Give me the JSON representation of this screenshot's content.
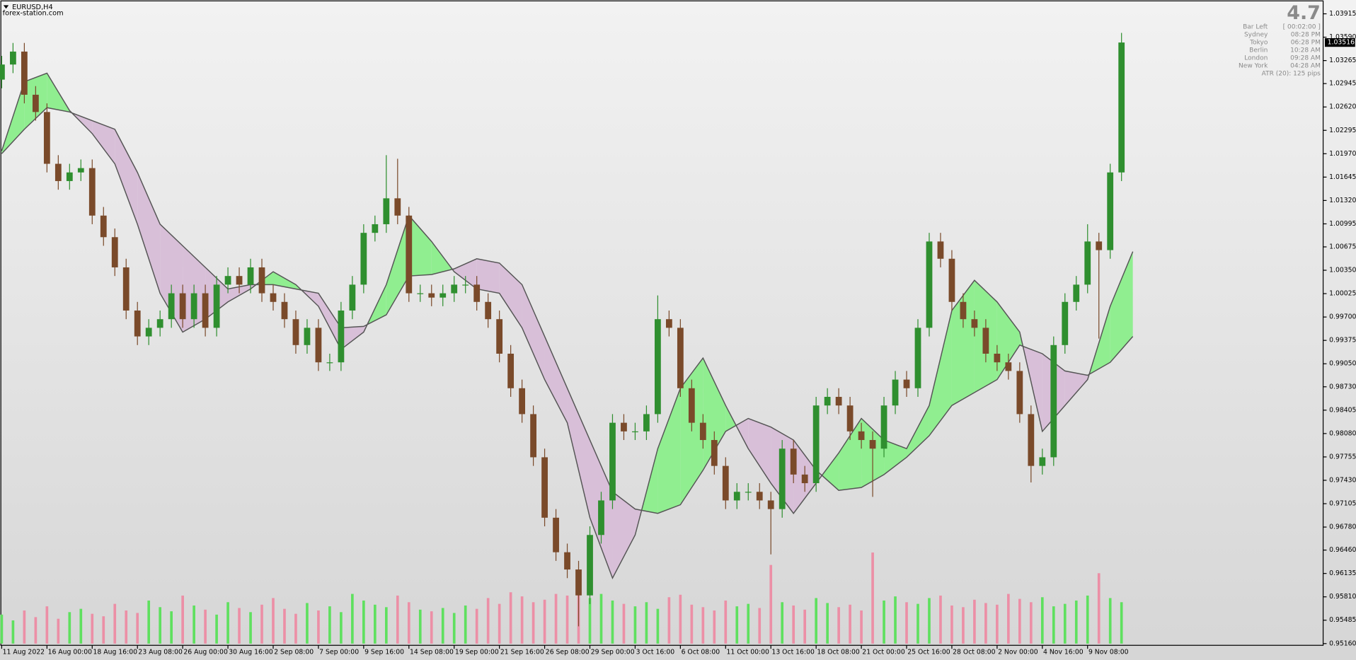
{
  "chart_data": {
    "type": "candlestick",
    "symbol": "EURUSD,H4",
    "source": "forex-station.com",
    "xlim": [
      -0.3,
      467.3
    ],
    "ylim": [
      0.95136,
      1.04083
    ],
    "yticks": [
      1.03915,
      {
        "value": 1.0359,
        "label": "1.03590"
      },
      1.03265,
      1.02945,
      {
        "value": 1.0262,
        "label": "1.02620"
      },
      1.02295,
      {
        "value": 1.0197,
        "label": "1.01970"
      },
      1.01645,
      {
        "value": 1.0132,
        "label": "1.01320"
      },
      1.00995,
      1.00675,
      {
        "value": 1.0035,
        "label": "1.00350"
      },
      1.00025,
      {
        "value": 0.997,
        "label": "0.99700"
      },
      0.99375,
      {
        "value": 0.9905,
        "label": "0.99050"
      },
      {
        "value": 0.9873,
        "label": "0.98730"
      },
      0.98405,
      {
        "value": 0.9808,
        "label": "0.98080"
      },
      0.97755,
      {
        "value": 0.9743,
        "label": "0.97430"
      },
      0.97105,
      {
        "value": 0.9678,
        "label": "0.96780"
      },
      {
        "value": 0.9646,
        "label": "0.96460"
      },
      0.96135,
      {
        "value": 0.9581,
        "label": "0.95810"
      },
      0.95485,
      {
        "value": 0.9516,
        "label": "0.95160"
      }
    ],
    "xticks": [
      {
        "value": 0,
        "label": "11 Aug 2022"
      },
      {
        "value": 16,
        "label": "16 Aug 00:00"
      },
      {
        "value": 32,
        "label": "18 Aug 16:00"
      },
      {
        "value": 48,
        "label": "23 Aug 08:00"
      },
      {
        "value": 64,
        "label": "26 Aug 00:00"
      },
      {
        "value": 80,
        "label": "30 Aug 16:00"
      },
      {
        "value": 96,
        "label": "2 Sep 08:00"
      },
      {
        "value": 112,
        "label": "7 Sep 00:00"
      },
      {
        "value": 128,
        "label": "9 Sep 16:00"
      },
      {
        "value": 144,
        "label": "14 Sep 08:00"
      },
      {
        "value": 160,
        "label": "19 Sep 00:00"
      },
      {
        "value": 176,
        "label": "21 Sep 16:00"
      },
      {
        "value": 192,
        "label": "26 Sep 08:00"
      },
      {
        "value": 208,
        "label": "29 Sep 00:00"
      },
      {
        "value": 224,
        "label": "3 Oct 16:00"
      },
      {
        "value": 240,
        "label": "6 Oct 08:00"
      },
      {
        "value": 256,
        "label": "11 Oct 00:00"
      },
      {
        "value": 272,
        "label": "13 Oct 16:00"
      },
      {
        "value": 288,
        "label": "18 Oct 08:00"
      },
      {
        "value": 304,
        "label": "21 Oct 00:00"
      },
      {
        "value": 320,
        "label": "25 Oct 16:00"
      },
      {
        "value": 336,
        "label": "28 Oct 08:00"
      },
      {
        "value": 352,
        "label": "2 Nov 00:00"
      },
      {
        "value": 368,
        "label": "4 Nov 16:00"
      },
      {
        "value": 384,
        "label": "9 Nov 08:00"
      }
    ],
    "x": [
      0,
      4,
      8,
      12,
      16,
      20,
      24,
      28,
      32,
      36,
      40,
      44,
      48,
      52,
      56,
      60,
      64,
      68,
      72,
      76,
      80,
      84,
      88,
      92,
      96,
      100,
      104,
      108,
      112,
      116,
      120,
      124,
      128,
      132,
      136,
      140,
      144,
      148,
      152,
      156,
      160,
      164,
      168,
      172,
      176,
      180,
      184,
      188,
      192,
      196,
      200,
      204,
      208,
      212,
      216,
      220,
      224,
      228,
      232,
      236,
      240,
      244,
      248,
      252,
      256,
      260,
      264,
      268,
      272,
      276,
      280,
      284,
      288,
      292,
      296,
      300,
      304,
      308,
      312,
      316,
      320,
      324,
      328,
      332,
      336,
      340,
      344,
      348,
      352,
      356,
      360,
      364,
      368,
      372,
      376,
      380,
      384,
      388,
      392,
      396
    ],
    "open": [
      1.03,
      1.0321,
      1.0339,
      1.0279,
      1.0255,
      1.0183,
      1.0159,
      1.0171,
      1.0177,
      1.0111,
      1.0081,
      1.0039,
      0.9979,
      0.9943,
      0.9955,
      0.9967,
      1.0003,
      0.9967,
      1.0003,
      0.9955,
      1.0015,
      1.0027,
      1.0015,
      1.0039,
      1.0003,
      0.9991,
      0.9967,
      0.9931,
      0.9955,
      0.9907,
      0.9907,
      0.9979,
      1.0015,
      1.0087,
      1.0099,
      1.0135,
      1.0111,
      1.0003,
      1.0003,
      0.9997,
      1.0003,
      1.0015,
      1.0015,
      0.9991,
      0.9967,
      0.9919,
      0.9871,
      0.9835,
      0.9775,
      0.9691,
      0.9643,
      0.9619,
      0.9583,
      0.9667,
      0.9715,
      0.9823,
      0.9811,
      0.9811,
      0.9835,
      0.9967,
      0.9955,
      0.9871,
      0.9823,
      0.9799,
      0.9763,
      0.9715,
      0.9727,
      0.9727,
      0.9715,
      0.9703,
      0.9787,
      0.9751,
      0.9739,
      0.9847,
      0.9859,
      0.9847,
      0.9811,
      0.9799,
      0.9787,
      0.9847,
      0.9883,
      0.9871,
      0.9955,
      1.0075,
      1.0051,
      0.9991,
      0.9967,
      0.9955,
      0.9919,
      0.9907,
      0.9895,
      0.9835,
      0.9763,
      0.9775,
      0.9931,
      0.9991,
      1.0015,
      1.0075,
      1.0063,
      1.0171
    ],
    "high": [
      1.0333,
      1.0351,
      1.0351,
      1.0291,
      1.0267,
      1.0195,
      1.0183,
      1.0189,
      1.0189,
      1.0123,
      1.0093,
      1.0051,
      0.9991,
      0.9967,
      0.9979,
      1.0015,
      1.0015,
      1.0015,
      1.0015,
      1.0027,
      1.0039,
      1.0039,
      1.0051,
      1.0051,
      1.0015,
      1.0003,
      0.9979,
      0.9967,
      0.9967,
      0.9919,
      0.9991,
      1.0027,
      1.0099,
      1.0111,
      1.0195,
      1.019,
      1.0123,
      1.0015,
      1.0015,
      1.0015,
      1.0027,
      1.0027,
      1.0027,
      1.0003,
      0.9979,
      0.9931,
      0.9883,
      0.9847,
      0.9787,
      0.9703,
      0.9655,
      0.9631,
      0.9679,
      0.9727,
      0.9835,
      0.9835,
      0.9823,
      0.9847,
      1.0,
      0.9979,
      0.9967,
      0.9883,
      0.9835,
      0.9811,
      0.9775,
      0.9739,
      0.9739,
      0.9739,
      0.9727,
      0.9799,
      0.9799,
      0.9763,
      0.9859,
      0.9871,
      0.9871,
      0.9859,
      0.9823,
      0.9811,
      0.9859,
      0.9895,
      0.9895,
      0.9967,
      1.0087,
      1.0087,
      1.0063,
      1.0003,
      0.9979,
      0.9967,
      0.9931,
      0.9919,
      0.9907,
      0.9847,
      0.9787,
      0.9943,
      1.0003,
      1.0027,
      1.0099,
      1.0087,
      1.0183,
      1.0365
    ],
    "low": [
      1.0288,
      1.0309,
      1.0267,
      1.0243,
      1.0171,
      1.0147,
      1.0147,
      1.0159,
      1.0099,
      1.0069,
      1.0027,
      0.9967,
      0.9931,
      0.9931,
      0.9943,
      0.9955,
      0.9955,
      0.9955,
      0.9943,
      0.9943,
      1.0003,
      1.0003,
      1.0003,
      0.9991,
      0.9979,
      0.9955,
      0.9919,
      0.9919,
      0.9895,
      0.9895,
      0.9895,
      0.9967,
      1.0003,
      1.0075,
      1.0087,
      1.0099,
      0.9991,
      0.9991,
      0.9985,
      0.9985,
      0.9991,
      1.0003,
      0.9979,
      0.9955,
      0.9907,
      0.9859,
      0.9823,
      0.9763,
      0.9679,
      0.9631,
      0.9607,
      0.954,
      0.9571,
      0.9655,
      0.9703,
      0.9799,
      0.9799,
      0.9799,
      0.9823,
      0.9943,
      0.9859,
      0.9811,
      0.9787,
      0.9751,
      0.9703,
      0.9703,
      0.9715,
      0.9703,
      0.964,
      0.9691,
      0.9739,
      0.9727,
      0.9727,
      0.9835,
      0.9835,
      0.9799,
      0.9787,
      0.972,
      0.9775,
      0.9835,
      0.9859,
      0.9859,
      0.9943,
      1.0039,
      0.9979,
      0.9955,
      0.9943,
      0.9907,
      0.9895,
      0.9883,
      0.9823,
      0.974,
      0.9751,
      0.9763,
      0.9919,
      0.9979,
      1.0003,
      0.994,
      1.0051,
      1.0159
    ],
    "close": [
      1.0321,
      1.0339,
      1.0279,
      1.0255,
      1.0183,
      1.0159,
      1.0171,
      1.0177,
      1.0111,
      1.0081,
      1.0039,
      0.9979,
      0.9943,
      0.9955,
      0.9967,
      1.0003,
      0.9967,
      1.0003,
      0.9955,
      1.0015,
      1.0027,
      1.0015,
      1.0039,
      1.0003,
      0.9991,
      0.9967,
      0.9931,
      0.9955,
      0.9907,
      0.9907,
      0.9979,
      1.0015,
      1.0087,
      1.0099,
      1.0135,
      1.0111,
      1.0003,
      1.0003,
      0.9997,
      1.0003,
      1.0015,
      1.0015,
      0.9991,
      0.9967,
      0.9919,
      0.9871,
      0.9835,
      0.9775,
      0.9691,
      0.9643,
      0.9619,
      0.9583,
      0.9667,
      0.9715,
      0.9823,
      0.9811,
      0.9811,
      0.9835,
      0.9967,
      0.9955,
      0.9871,
      0.9823,
      0.9799,
      0.9763,
      0.9715,
      0.9727,
      0.9727,
      0.9715,
      0.9703,
      0.9787,
      0.9751,
      0.9739,
      0.9847,
      0.9859,
      0.9847,
      0.9811,
      0.9799,
      0.9787,
      0.9847,
      0.9883,
      0.9871,
      0.9955,
      1.0075,
      1.0051,
      0.9991,
      0.9967,
      0.9955,
      0.9919,
      0.9907,
      0.9895,
      0.9835,
      0.9763,
      0.9775,
      0.9931,
      0.9991,
      1.0015,
      1.0075,
      1.0063,
      1.0171,
      1.03516
    ],
    "volume": [
      35,
      28,
      40,
      32,
      45,
      30,
      38,
      42,
      36,
      33,
      48,
      40,
      37,
      52,
      44,
      39,
      58,
      46,
      41,
      35,
      50,
      43,
      38,
      47,
      55,
      42,
      36,
      49,
      40,
      45,
      38,
      60,
      52,
      47,
      44,
      58,
      50,
      41,
      39,
      43,
      37,
      46,
      42,
      55,
      48,
      62,
      57,
      50,
      53,
      60,
      58,
      62,
      55,
      60,
      52,
      48,
      45,
      50,
      42,
      56,
      59,
      47,
      44,
      40,
      52,
      45,
      48,
      43,
      95,
      50,
      46,
      41,
      55,
      49,
      44,
      47,
      40,
      110,
      52,
      57,
      50,
      48,
      55,
      58,
      46,
      44,
      53,
      49,
      47,
      60,
      54,
      50,
      56,
      45,
      48,
      52,
      58,
      85,
      55,
      50
    ],
    "volume_lim": [
      0,
      120
    ],
    "up_color": "#2f8f2f",
    "down_color": "#7a4a2a",
    "volume_up_color": "#5fe05f",
    "volume_down_color": "#ec8fa6",
    "cloud": {
      "x": [
        0,
        8,
        16,
        24,
        32,
        40,
        48,
        56,
        64,
        72,
        80,
        88,
        96,
        104,
        112,
        120,
        128,
        136,
        144,
        152,
        160,
        168,
        176,
        184,
        192,
        200,
        208,
        216,
        224,
        232,
        240,
        248,
        256,
        264,
        272,
        280,
        288,
        296,
        304,
        312,
        320,
        328,
        336,
        344,
        352,
        360,
        368,
        376,
        384,
        392,
        400
      ],
      "line_a": [
        1.0201,
        1.0297,
        1.0309,
        1.0257,
        1.0225,
        1.0183,
        1.0099,
        1.0003,
        0.9949,
        0.9967,
        0.9991,
        1.0009,
        1.0033,
        1.0015,
        0.9985,
        0.9925,
        0.9949,
        1.0015,
        1.0111,
        1.0075,
        1.0033,
        1.0009,
        1.0003,
        0.9955,
        0.9883,
        0.9823,
        0.9691,
        0.9607,
        0.9667,
        0.9787,
        0.9871,
        0.9913,
        0.9847,
        0.9787,
        0.9739,
        0.9697,
        0.9739,
        0.9781,
        0.9829,
        0.9799,
        0.9787,
        0.9847,
        0.9979,
        1.0021,
        0.9991,
        0.9949,
        0.9811,
        0.9847,
        0.9883,
        0.9985,
        1.0061
      ],
      "line_b": [
        1.0197,
        1.0231,
        1.0261,
        1.0255,
        1.0243,
        1.0231,
        1.0171,
        1.0099,
        1.0069,
        1.0039,
        1.0009,
        1.0015,
        1.0015,
        1.0009,
        1.0003,
        0.9955,
        0.9957,
        0.9973,
        1.0027,
        1.0029,
        1.0037,
        1.0051,
        1.0045,
        1.0015,
        0.9943,
        0.9871,
        0.9799,
        0.9727,
        0.9703,
        0.9697,
        0.9709,
        0.9757,
        0.9811,
        0.9829,
        0.9817,
        0.9799,
        0.9757,
        0.9729,
        0.9733,
        0.9751,
        0.9775,
        0.9805,
        0.9847,
        0.9865,
        0.9883,
        0.9931,
        0.9919,
        0.9895,
        0.9889,
        0.9907,
        0.9943
      ],
      "up_color": "#90ee90",
      "down_color": "#d8bfd8",
      "line_color": "#555555"
    },
    "info": {
      "value": 4.7,
      "rows": [
        {
          "label": "Bar Left",
          "value": "[ 00:02:00 ]"
        },
        {
          "label": "Sydney",
          "value": "08:28 PM"
        },
        {
          "label": "Tokyo",
          "value": "06:28 PM"
        },
        {
          "label": "Berlin",
          "value": "10:28 AM"
        },
        {
          "label": "London",
          "value": "09:28 AM"
        },
        {
          "label": "New York",
          "value": "04:28 AM"
        }
      ],
      "atr": "ATR (20): 125 pips"
    }
  }
}
